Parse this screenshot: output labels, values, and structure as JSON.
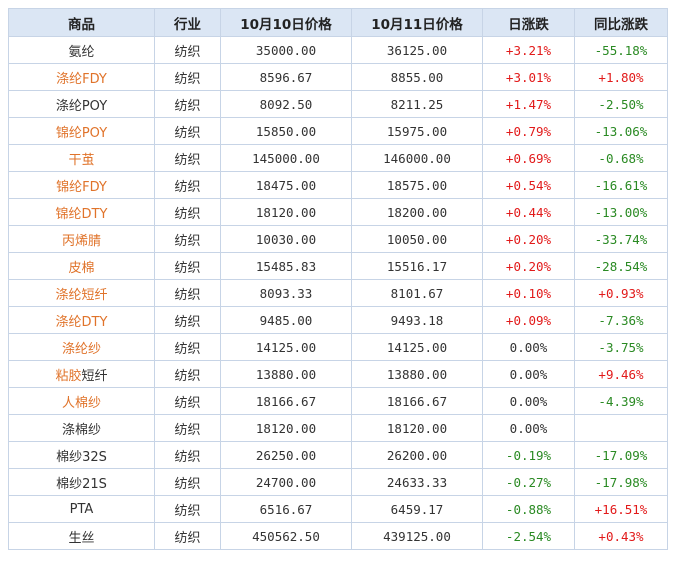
{
  "headers": [
    "商品",
    "行业",
    "10月10日价格",
    "10月11日价格",
    "日涨跌",
    "同比涨跌"
  ],
  "rows": [
    {
      "name": "氨纶",
      "name_color": "plain",
      "industry": "纺织",
      "price_1010": "35000.00",
      "price_1011": "36125.00",
      "daily_change": "+3.21%",
      "daily_dir": "up",
      "yoy_change": "-55.18%",
      "yoy_dir": "down"
    },
    {
      "name": "涤纶FDY",
      "name_color": "orange",
      "industry": "纺织",
      "price_1010": "8596.67",
      "price_1011": "8855.00",
      "daily_change": "+3.01%",
      "daily_dir": "up",
      "yoy_change": "+1.80%",
      "yoy_dir": "up"
    },
    {
      "name": "涤纶POY",
      "name_color": "plain",
      "industry": "纺织",
      "price_1010": "8092.50",
      "price_1011": "8211.25",
      "daily_change": "+1.47%",
      "daily_dir": "up",
      "yoy_change": "-2.50%",
      "yoy_dir": "down"
    },
    {
      "name": "锦纶POY",
      "name_color": "orange",
      "industry": "纺织",
      "price_1010": "15850.00",
      "price_1011": "15975.00",
      "daily_change": "+0.79%",
      "daily_dir": "up",
      "yoy_change": "-13.06%",
      "yoy_dir": "down"
    },
    {
      "name": "干茧",
      "name_color": "orange",
      "industry": "纺织",
      "price_1010": "145000.00",
      "price_1011": "146000.00",
      "daily_change": "+0.69%",
      "daily_dir": "up",
      "yoy_change": "-0.68%",
      "yoy_dir": "down"
    },
    {
      "name": "锦纶FDY",
      "name_color": "orange",
      "industry": "纺织",
      "price_1010": "18475.00",
      "price_1011": "18575.00",
      "daily_change": "+0.54%",
      "daily_dir": "up",
      "yoy_change": "-16.61%",
      "yoy_dir": "down"
    },
    {
      "name": "锦纶DTY",
      "name_color": "orange",
      "industry": "纺织",
      "price_1010": "18120.00",
      "price_1011": "18200.00",
      "daily_change": "+0.44%",
      "daily_dir": "up",
      "yoy_change": "-13.00%",
      "yoy_dir": "down"
    },
    {
      "name": "丙烯腈",
      "name_color": "orange",
      "industry": "纺织",
      "price_1010": "10030.00",
      "price_1011": "10050.00",
      "daily_change": "+0.20%",
      "daily_dir": "up",
      "yoy_change": "-33.74%",
      "yoy_dir": "down"
    },
    {
      "name": "皮棉",
      "name_color": "orange",
      "industry": "纺织",
      "price_1010": "15485.83",
      "price_1011": "15516.17",
      "daily_change": "+0.20%",
      "daily_dir": "up",
      "yoy_change": "-28.54%",
      "yoy_dir": "down"
    },
    {
      "name": "涤纶短纤",
      "name_color": "orange",
      "industry": "纺织",
      "price_1010": "8093.33",
      "price_1011": "8101.67",
      "daily_change": "+0.10%",
      "daily_dir": "up",
      "yoy_change": "+0.93%",
      "yoy_dir": "up"
    },
    {
      "name": "涤纶DTY",
      "name_color": "orange",
      "industry": "纺织",
      "price_1010": "9485.00",
      "price_1011": "9493.18",
      "daily_change": "+0.09%",
      "daily_dir": "up",
      "yoy_change": "-7.36%",
      "yoy_dir": "down"
    },
    {
      "name": "涤纶纱",
      "name_color": "orange",
      "industry": "纺织",
      "price_1010": "14125.00",
      "price_1011": "14125.00",
      "daily_change": "0.00%",
      "daily_dir": "flat",
      "yoy_change": "-3.75%",
      "yoy_dir": "down"
    },
    {
      "name": "粘胶短纤",
      "name_color": "mixed",
      "name_orange_part": "粘胶",
      "name_plain_part": "短纤",
      "industry": "纺织",
      "price_1010": "13880.00",
      "price_1011": "13880.00",
      "daily_change": "0.00%",
      "daily_dir": "flat",
      "yoy_change": "+9.46%",
      "yoy_dir": "up"
    },
    {
      "name": "人棉纱",
      "name_color": "orange",
      "industry": "纺织",
      "price_1010": "18166.67",
      "price_1011": "18166.67",
      "daily_change": "0.00%",
      "daily_dir": "flat",
      "yoy_change": "-4.39%",
      "yoy_dir": "down"
    },
    {
      "name": "涤棉纱",
      "name_color": "plain",
      "industry": "纺织",
      "price_1010": "18120.00",
      "price_1011": "18120.00",
      "daily_change": "0.00%",
      "daily_dir": "flat",
      "yoy_change": "",
      "yoy_dir": "flat"
    },
    {
      "name": "棉纱32S",
      "name_color": "plain",
      "industry": "纺织",
      "price_1010": "26250.00",
      "price_1011": "26200.00",
      "daily_change": "-0.19%",
      "daily_dir": "down",
      "yoy_change": "-17.09%",
      "yoy_dir": "down"
    },
    {
      "name": "棉纱21S",
      "name_color": "plain",
      "industry": "纺织",
      "price_1010": "24700.00",
      "price_1011": "24633.33",
      "daily_change": "-0.27%",
      "daily_dir": "down",
      "yoy_change": "-17.98%",
      "yoy_dir": "down"
    },
    {
      "name": "PTA",
      "name_color": "plain",
      "industry": "纺织",
      "price_1010": "6516.67",
      "price_1011": "6459.17",
      "daily_change": "-0.88%",
      "daily_dir": "down",
      "yoy_change": "+16.51%",
      "yoy_dir": "up"
    },
    {
      "name": "生丝",
      "name_color": "plain",
      "industry": "纺织",
      "price_1010": "450562.50",
      "price_1011": "439125.00",
      "daily_change": "-2.54%",
      "daily_dir": "down",
      "yoy_change": "+0.43%",
      "yoy_dir": "up"
    }
  ],
  "colors": {
    "header_bg": "#dbe6f4",
    "border": "#c7d4e6",
    "up": "#e21a1a",
    "down": "#2a8a23",
    "link_orange": "#e0732a"
  }
}
